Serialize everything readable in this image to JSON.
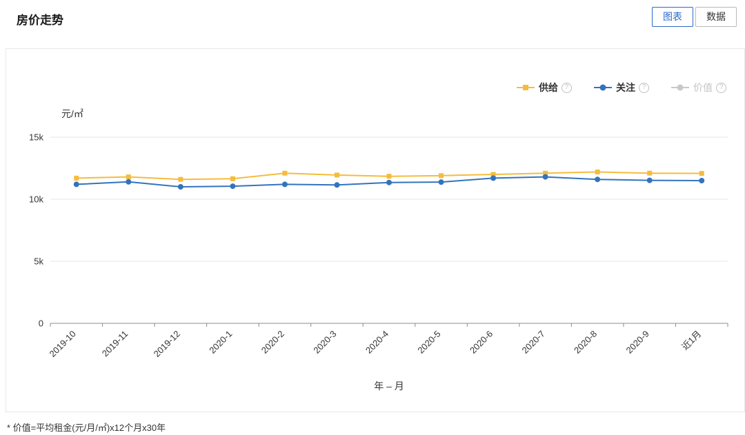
{
  "page": {
    "title": "房价走势",
    "footnote": "* 价值=平均租金(元/月/㎡)x12个月x30年"
  },
  "toolbar": {
    "chart_tab": "图表",
    "data_tab": "数据"
  },
  "chart_data": {
    "type": "line",
    "unit_label": "元/㎡",
    "xlabel": "年 – 月",
    "categories": [
      "2019-10",
      "2019-11",
      "2019-12",
      "2020-1",
      "2020-2",
      "2020-3",
      "2020-4",
      "2020-5",
      "2020-6",
      "2020-7",
      "2020-8",
      "2020-9",
      "近1月"
    ],
    "series": [
      {
        "name": "供给",
        "color": "#f5bc3c",
        "marker": "square",
        "visible": true,
        "values": [
          11700,
          11800,
          11600,
          11650,
          12100,
          11950,
          11850,
          11900,
          12000,
          12100,
          12200,
          12100,
          12080
        ]
      },
      {
        "name": "关注",
        "color": "#3273be",
        "marker": "circle",
        "visible": true,
        "values": [
          11200,
          11400,
          11000,
          11050,
          11200,
          11150,
          11350,
          11380,
          11700,
          11800,
          11600,
          11520,
          11500
        ]
      },
      {
        "name": "价值",
        "color": "#c8c8c8",
        "marker": "circle",
        "visible": false,
        "values": []
      }
    ],
    "yticks": [
      "0",
      "5k",
      "10k",
      "15k"
    ],
    "ylim": [
      0,
      15000
    ],
    "grid": true,
    "legend_position": "top-right"
  }
}
